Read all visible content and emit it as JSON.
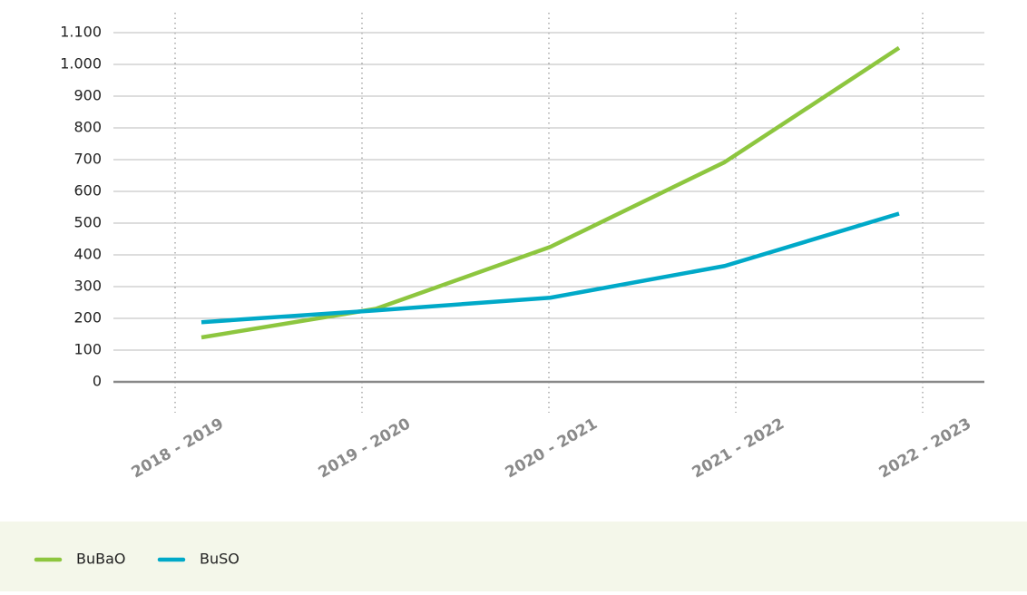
{
  "chart_data": {
    "type": "line",
    "categories": [
      "2018 - 2019",
      "2019 - 2020",
      "2020 - 2021",
      "2021 - 2022",
      "2022 - 2023"
    ],
    "series": [
      {
        "name": "BuBaO",
        "color": "#8dc63f",
        "values": [
          140,
          230,
          425,
          692,
          1052
        ]
      },
      {
        "name": "BuSO",
        "color": "#00a9c8",
        "values": [
          188,
          225,
          265,
          365,
          530
        ]
      }
    ],
    "ylim": [
      0,
      1100
    ],
    "yticks": [
      0,
      100,
      200,
      300,
      400,
      500,
      600,
      700,
      800,
      900,
      {
        "value": 1000,
        "label": "1.000"
      },
      {
        "value": 1100,
        "label": "1.100"
      }
    ],
    "grid": true
  }
}
